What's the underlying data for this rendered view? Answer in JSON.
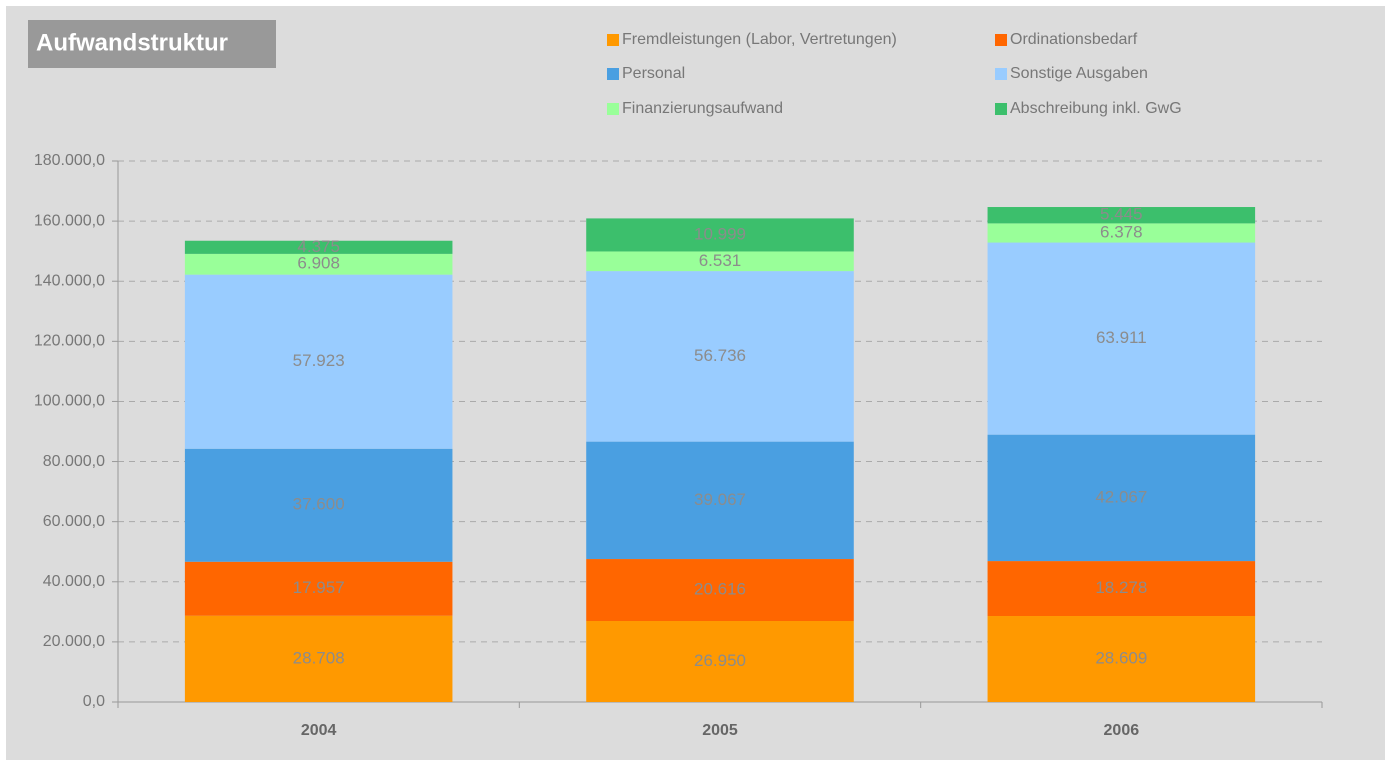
{
  "chart_data": {
    "type": "stacked_bar",
    "title": "Aufwandstruktur",
    "categories": [
      "2004",
      "2005",
      "2006"
    ],
    "series": [
      {
        "name": "Fremdleistungen (Labor, Vertretungen)",
        "color": "#ff9900",
        "values": [
          28708,
          26950,
          28609
        ],
        "value_labels": [
          "28.708",
          "26.950",
          "28.609"
        ]
      },
      {
        "name": "Ordinationsbedarf",
        "color": "#ff6600",
        "values": [
          17957,
          20616,
          18278
        ],
        "value_labels": [
          "17.957",
          "20.616",
          "18.278"
        ]
      },
      {
        "name": "Personal",
        "color": "#4a9fe1",
        "values": [
          37600,
          39067,
          42067
        ],
        "value_labels": [
          "37.600",
          "39.067",
          "42.067"
        ]
      },
      {
        "name": "Sonstige Ausgaben",
        "color": "#99ccff",
        "values": [
          57923,
          56736,
          63911
        ],
        "value_labels": [
          "57.923",
          "56.736",
          "63.911"
        ]
      },
      {
        "name": "Finanzierungsaufwand",
        "color": "#99ff99",
        "values": [
          6908,
          6531,
          6378
        ],
        "value_labels": [
          "6.908",
          "6.531",
          "6.378"
        ]
      },
      {
        "name": "Abschreibung inkl. GwG",
        "color": "#3cbf6c",
        "values": [
          4375,
          10999,
          5445
        ],
        "value_labels": [
          "4.375",
          "10.999",
          "5.445"
        ]
      }
    ],
    "ylim": [
      0,
      180000
    ],
    "yticks": [
      {
        "value": 0,
        "label": "0,0"
      },
      {
        "value": 20000,
        "label": "20.000,0"
      },
      {
        "value": 40000,
        "label": "40.000,0"
      },
      {
        "value": 60000,
        "label": "60.000,0"
      },
      {
        "value": 80000,
        "label": "80.000,0"
      },
      {
        "value": 100000,
        "label": "100.000,0"
      },
      {
        "value": 120000,
        "label": "120.000,0"
      },
      {
        "value": 140000,
        "label": "140.000,0"
      },
      {
        "value": 160000,
        "label": "160.000,0"
      },
      {
        "value": 180000,
        "label": "180.000,0"
      }
    ],
    "grid": true
  }
}
